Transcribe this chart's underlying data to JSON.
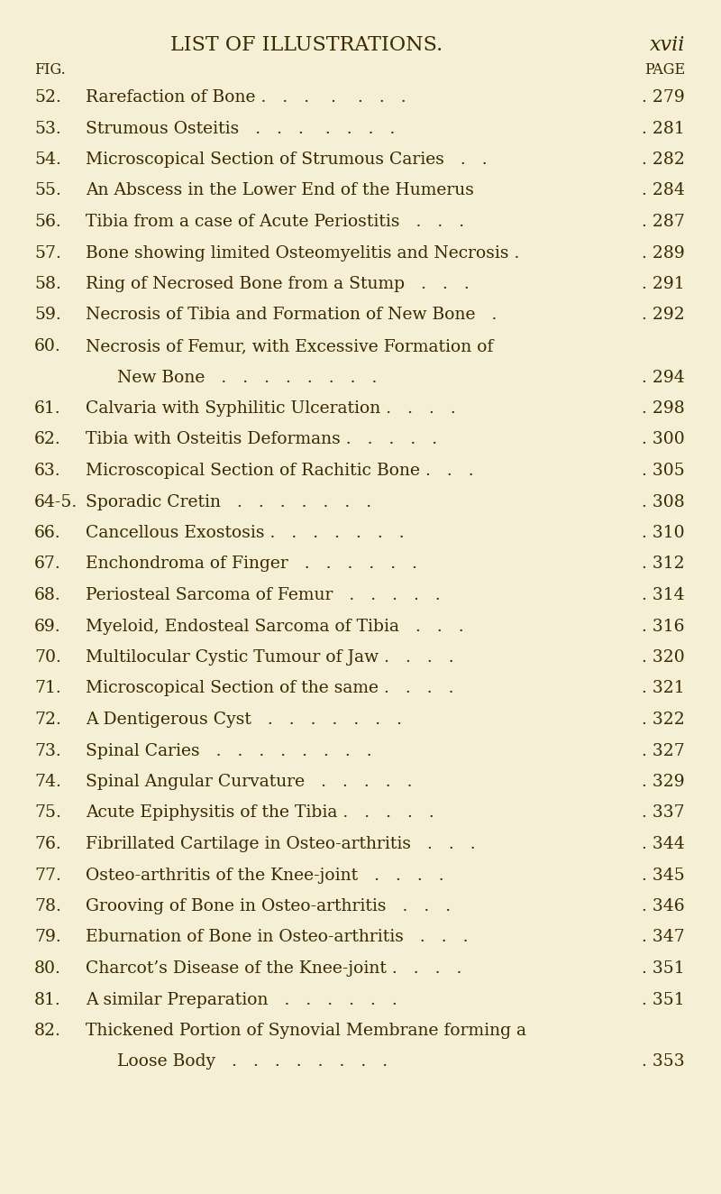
{
  "background_color": "#f5f0d5",
  "header_title": "LIST OF ILLUSTRATIONS.",
  "header_page": "xvii",
  "col_fig_label": "FIG.",
  "col_page_label": "PAGE",
  "entries": [
    {
      "fig": "52.",
      "text": "Rarefaction of Bone .   .   .    .    .   .   .",
      "page": "279",
      "indent": false
    },
    {
      "fig": "53.",
      "text": "Strumous Osteitis   .   .   .    .   .   .   .",
      "page": "281",
      "indent": false
    },
    {
      "fig": "54.",
      "text": "Microscopical Section of Strumous Caries   .   .",
      "page": "282",
      "indent": false
    },
    {
      "fig": "55.",
      "text": "An Abscess in the Lower End of the Humerus",
      "page": "284",
      "indent": false
    },
    {
      "fig": "56.",
      "text": "Tibia from a case of Acute Periostitis   .   .   .",
      "page": "287",
      "indent": false
    },
    {
      "fig": "57.",
      "text": "Bone showing limited Osteomyelitis and Necrosis .",
      "page": "289",
      "indent": false
    },
    {
      "fig": "58.",
      "text": "Ring of Necrosed Bone from a Stump   .   .   .",
      "page": "291",
      "indent": false
    },
    {
      "fig": "59.",
      "text": "Necrosis of Tibia and Formation of New Bone   .",
      "page": "292",
      "indent": false
    },
    {
      "fig": "60.",
      "text": "Necrosis of Femur, with Excessive Formation of",
      "page": "",
      "indent": false
    },
    {
      "fig": "",
      "text": "New Bone   .   .   .   .   .   .   .   .",
      "page": "294",
      "indent": true
    },
    {
      "fig": "61.",
      "text": "Calvaria with Syphilitic Ulceration .   .   .   .",
      "page": "298",
      "indent": false
    },
    {
      "fig": "62.",
      "text": "Tibia with Osteitis Deformans .   .   .   .   .",
      "page": "300",
      "indent": false
    },
    {
      "fig": "63.",
      "text": "Microscopical Section of Rachitic Bone .   .   .",
      "page": "305",
      "indent": false
    },
    {
      "fig": "64-5.",
      "text": "Sporadic Cretin   .   .   .   .   .   .   .",
      "page": "308",
      "indent": false
    },
    {
      "fig": "66.",
      "text": "Cancellous Exostosis .   .   .   .   .   .   .",
      "page": "310",
      "indent": false
    },
    {
      "fig": "67.",
      "text": "Enchondroma of Finger   .   .   .   .   .   .",
      "page": "312",
      "indent": false
    },
    {
      "fig": "68.",
      "text": "Periosteal Sarcoma of Femur   .   .   .   .   .",
      "page": "314",
      "indent": false
    },
    {
      "fig": "69.",
      "text": "Myeloid, Endosteal Sarcoma of Tibia   .   .   .",
      "page": "316",
      "indent": false
    },
    {
      "fig": "70.",
      "text": "Multilocular Cystic Tumour of Jaw .   .   .   .",
      "page": "320",
      "indent": false
    },
    {
      "fig": "71.",
      "text": "Microscopical Section of the same .   .   .   .",
      "page": "321",
      "indent": false
    },
    {
      "fig": "72.",
      "text": "A Dentigerous Cyst   .   .   .   .   .   .   .",
      "page": "322",
      "indent": false
    },
    {
      "fig": "73.",
      "text": "Spinal Caries   .   .   .   .   .   .   .   .",
      "page": "327",
      "indent": false
    },
    {
      "fig": "74.",
      "text": "Spinal Angular Curvature   .   .   .   .   .",
      "page": "329",
      "indent": false
    },
    {
      "fig": "75.",
      "text": "Acute Epiphysitis of the Tibia .   .   .   .   .",
      "page": "337",
      "indent": false
    },
    {
      "fig": "76.",
      "text": "Fibrillated Cartilage in Osteo-arthritis   .   .   .",
      "page": "344",
      "indent": false
    },
    {
      "fig": "77.",
      "text": "Osteo-arthritis of the Knee-joint   .   .   .   .",
      "page": "345",
      "indent": false
    },
    {
      "fig": "78.",
      "text": "Grooving of Bone in Osteo-arthritis   .   .   .",
      "page": "346",
      "indent": false
    },
    {
      "fig": "79.",
      "text": "Eburnation of Bone in Osteo-arthritis   .   .   .",
      "page": "347",
      "indent": false
    },
    {
      "fig": "80.",
      "text": "Charcot’s Disease of the Knee-joint .   .   .   .",
      "page": "351",
      "indent": false
    },
    {
      "fig": "81.",
      "text": "A similar Preparation   .   .   .   .   .   .",
      "page": "351",
      "indent": false
    },
    {
      "fig": "82.",
      "text": "Thickened Portion of Synovial Membrane forming a",
      "page": "",
      "indent": false
    },
    {
      "fig": "",
      "text": "Loose Body   .   .   .   .   .   .   .   .",
      "page": "353",
      "indent": true
    }
  ],
  "text_color": "#3a2800",
  "fig_fontsize": 13.5,
  "entry_fontsize": 13.5,
  "header_fontsize": 16,
  "label_fontsize": 11.5,
  "page_num_fontsize": 13.5
}
